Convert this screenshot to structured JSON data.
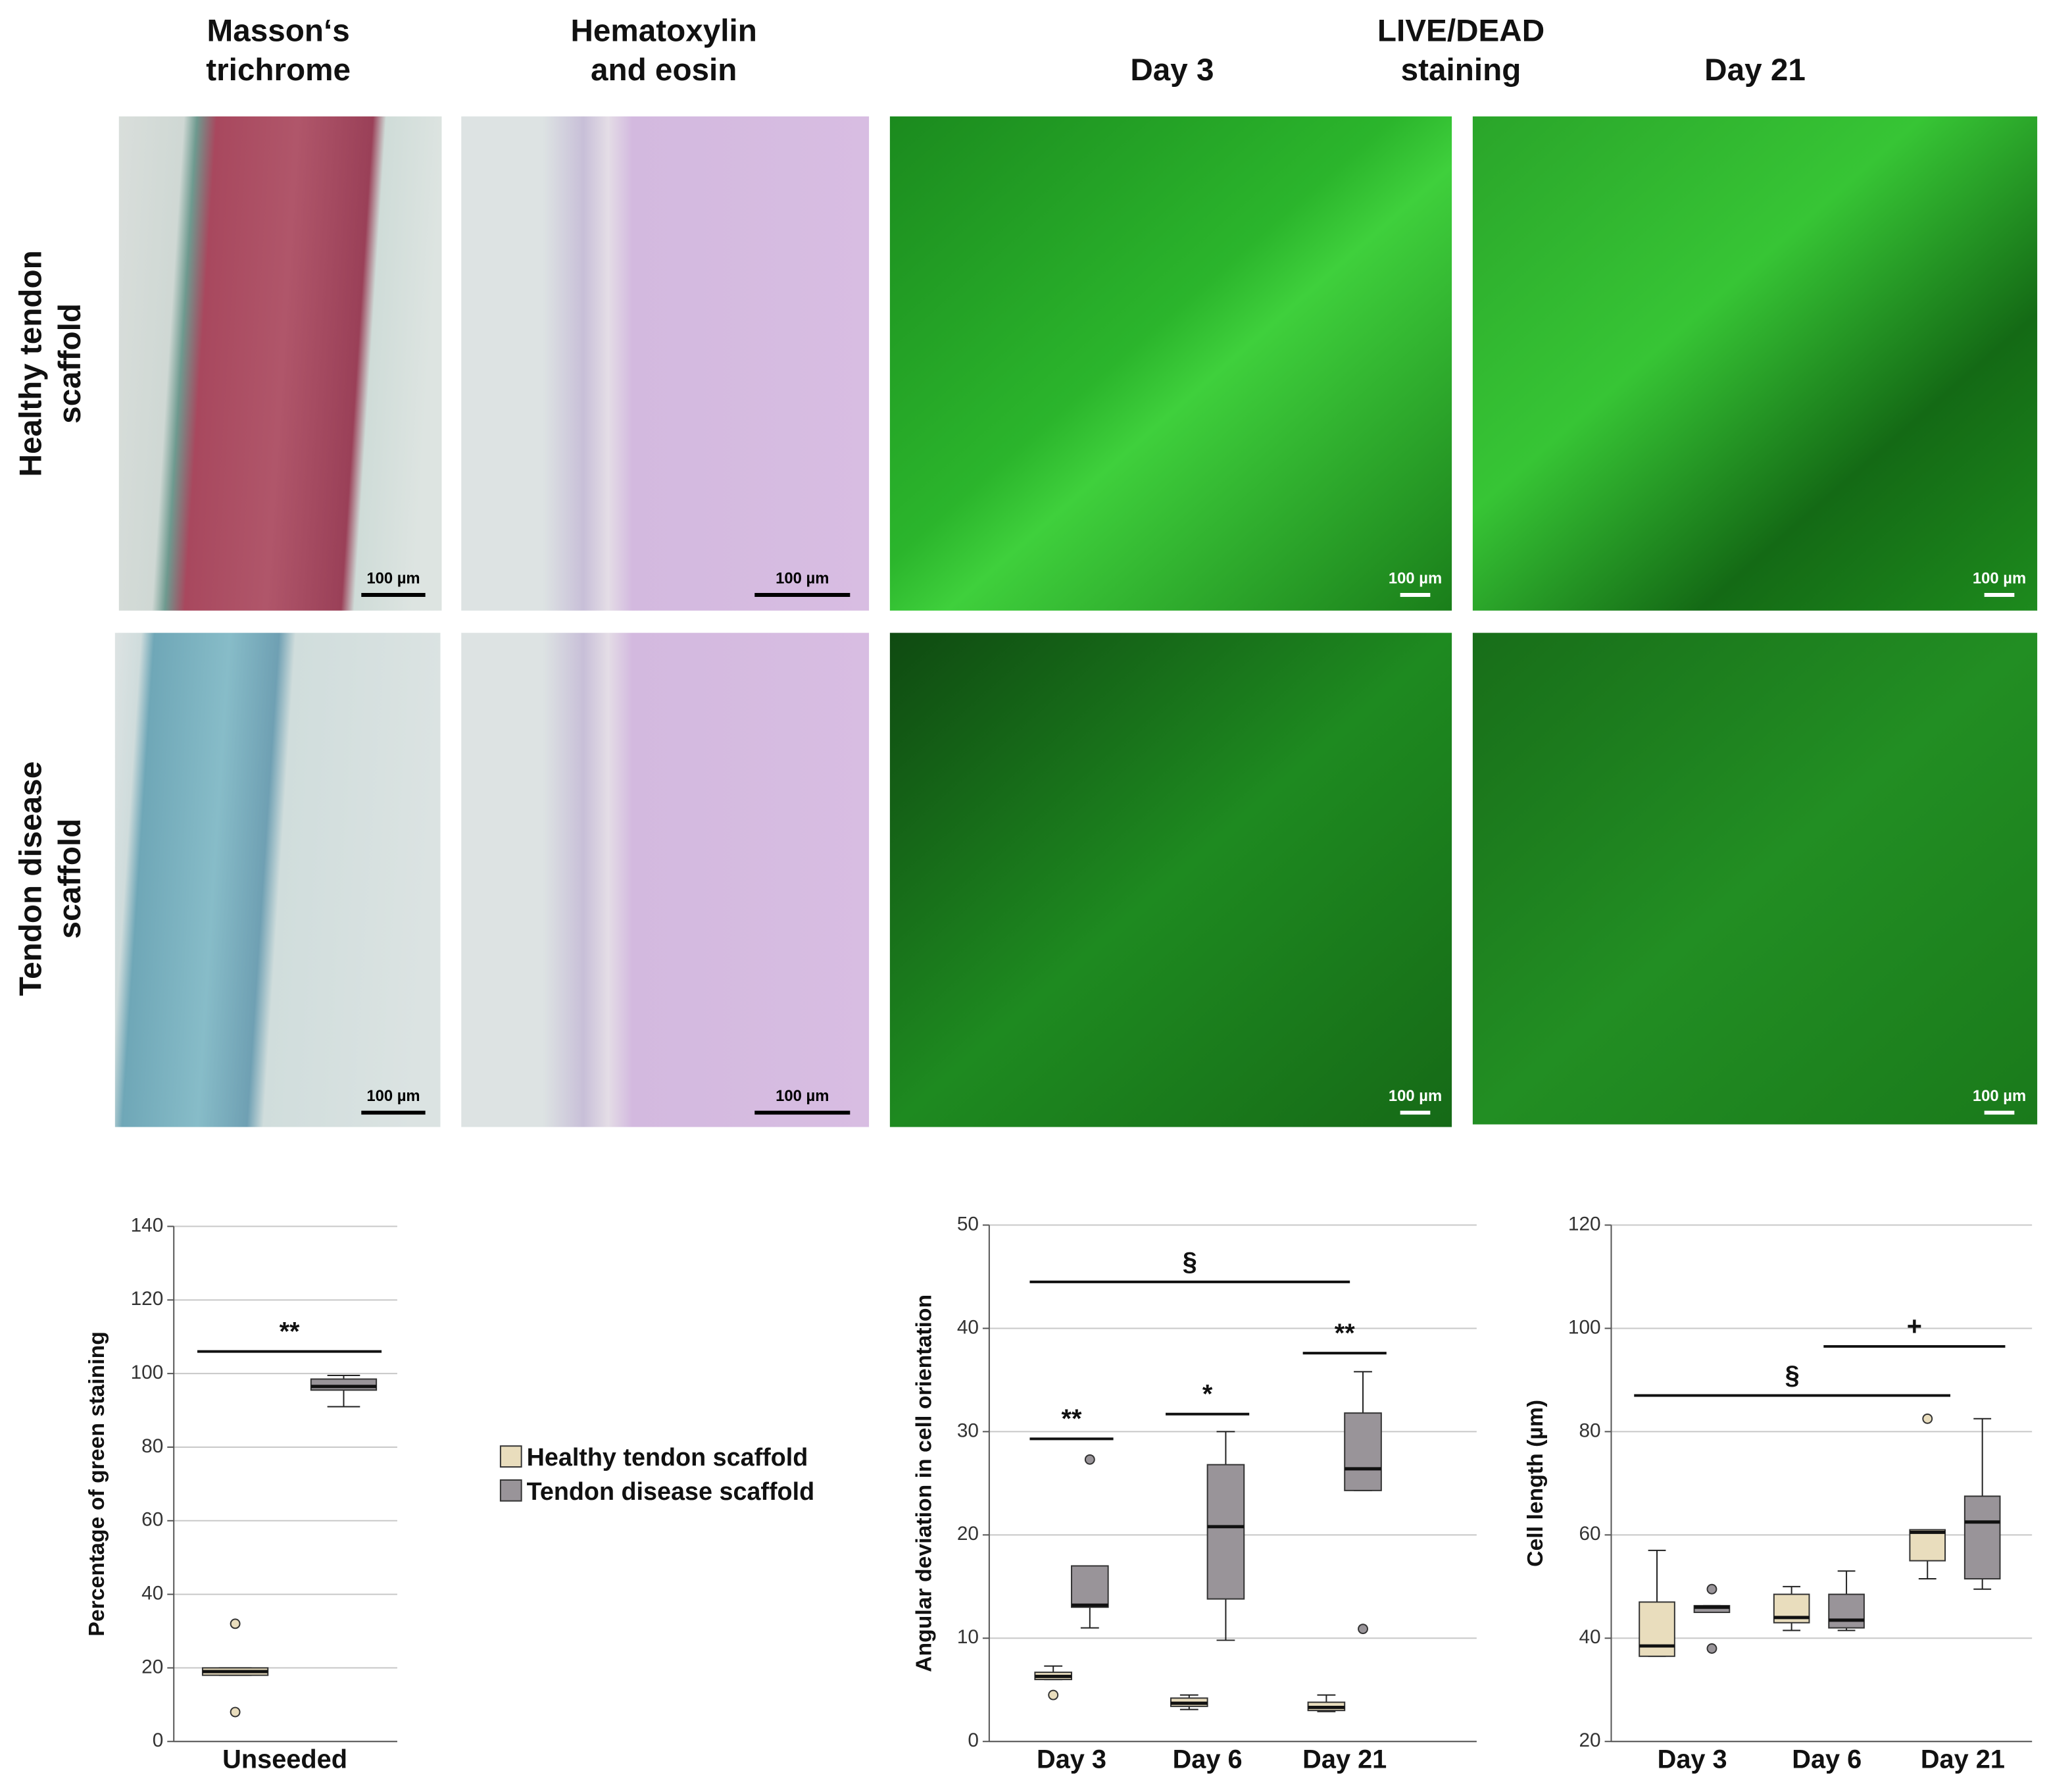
{
  "column_headers": [
    {
      "lines": [
        "Masson‘s",
        "trichrome"
      ]
    },
    {
      "lines": [
        "Hematoxylin",
        "and eosin"
      ]
    },
    {
      "lines": [
        "Day 3"
      ]
    },
    {
      "lines": [
        "LIVE/DEAD",
        "staining"
      ]
    },
    {
      "lines": [
        "Day 21"
      ]
    }
  ],
  "row_labels": [
    {
      "lines": [
        "Healthy tendon",
        "scaffold"
      ]
    },
    {
      "lines": [
        "Tendon disease",
        "scaffold"
      ]
    }
  ],
  "panels": [
    {
      "scale_bar": "100 µm"
    },
    {
      "scale_bar": "100 µm"
    },
    {
      "scale_bar": "100 µm"
    },
    {
      "scale_bar": "100 µm"
    },
    {
      "scale_bar": "100 µm"
    },
    {
      "scale_bar": "100 µm"
    },
    {
      "scale_bar": "100 µm"
    },
    {
      "scale_bar": "100 µm"
    }
  ],
  "legend": [
    {
      "name": "Healthy tendon scaffold",
      "color": "#e9ddbd"
    },
    {
      "name": "Tendon disease scaffold",
      "color": "#999499"
    }
  ],
  "chart_data": [
    {
      "type": "box",
      "y_label": "Percentage of green staining",
      "categories": [
        "Unseeded"
      ],
      "ylim": [
        0,
        140
      ],
      "yticks": [
        0,
        20,
        40,
        60,
        80,
        100,
        120,
        140
      ],
      "grid": true,
      "series": [
        {
          "boxes": [
            {
              "min": 18,
              "q1": 18,
              "median": 19,
              "q3": 20,
              "max": 20,
              "outliers": [
                32,
                8
              ]
            }
          ]
        },
        {
          "boxes": [
            {
              "min": 91,
              "q1": 95.5,
              "median": 96.5,
              "q3": 98.5,
              "max": 99.5,
              "outliers": []
            }
          ]
        }
      ],
      "annotations": [
        {
          "label": "**",
          "y": 106,
          "from": [
            0,
            0
          ],
          "to": [
            0,
            1
          ]
        }
      ]
    },
    {
      "type": "box",
      "y_label": "Angular deviation in cell orientation",
      "categories": [
        "Day 3",
        "Day 6",
        "Day 21"
      ],
      "ylim": [
        0,
        50
      ],
      "yticks": [
        0,
        10,
        20,
        30,
        40,
        50
      ],
      "grid": true,
      "series": [
        {
          "boxes": [
            {
              "min": 6,
              "q1": 6,
              "median": 6.3,
              "q3": 6.7,
              "max": 7.3,
              "outliers": [
                4.5
              ]
            },
            {
              "min": 3.1,
              "q1": 3.4,
              "median": 3.7,
              "q3": 4.2,
              "max": 4.5,
              "outliers": []
            },
            {
              "min": 2.9,
              "q1": 3,
              "median": 3.3,
              "q3": 3.8,
              "max": 4.5,
              "outliers": []
            }
          ]
        },
        {
          "boxes": [
            {
              "min": 11,
              "q1": 13,
              "median": 13.2,
              "q3": 17,
              "max": 17,
              "outliers": [
                27.3
              ]
            },
            {
              "min": 9.8,
              "q1": 13.8,
              "median": 20.8,
              "q3": 26.8,
              "max": 30,
              "outliers": []
            },
            {
              "min": 24.3,
              "q1": 24.3,
              "median": 26.4,
              "q3": 31.8,
              "max": 35.8,
              "outliers": [
                10.9
              ]
            }
          ]
        }
      ],
      "annotations": [
        {
          "label": "**",
          "y": 29.3,
          "from": [
            0,
            0
          ],
          "to": [
            0,
            1
          ]
        },
        {
          "label": "*",
          "y": 31.7,
          "from": [
            1,
            0
          ],
          "to": [
            1,
            1
          ]
        },
        {
          "label": "**",
          "y": 37.6,
          "from": [
            2,
            0
          ],
          "to": [
            2,
            1
          ]
        },
        {
          "label": "§",
          "y": 44.5,
          "from": [
            0,
            0
          ],
          "to": [
            2,
            0
          ]
        }
      ]
    },
    {
      "type": "box",
      "y_label": "Cell length (µm)",
      "categories": [
        "Day 3",
        "Day 6",
        "Day 21"
      ],
      "ylim": [
        20,
        120
      ],
      "yticks": [
        20,
        40,
        60,
        80,
        100,
        120
      ],
      "grid": true,
      "series": [
        {
          "boxes": [
            {
              "min": 36.5,
              "q1": 36.5,
              "median": 38.5,
              "q3": 47,
              "max": 57,
              "outliers": []
            },
            {
              "min": 41.5,
              "q1": 43,
              "median": 44,
              "q3": 48.5,
              "max": 50,
              "outliers": []
            },
            {
              "min": 51.5,
              "q1": 55,
              "median": 60.5,
              "q3": 61,
              "max": 61,
              "outliers": [
                82.5
              ]
            }
          ]
        },
        {
          "boxes": [
            {
              "min": 45,
              "q1": 45,
              "median": 46,
              "q3": 46.3,
              "max": 46.3,
              "outliers": [
                49.5,
                38
              ]
            },
            {
              "min": 41.5,
              "q1": 42,
              "median": 43.5,
              "q3": 48.5,
              "max": 53,
              "outliers": []
            },
            {
              "min": 49.5,
              "q1": 51.5,
              "median": 62.5,
              "q3": 67.5,
              "max": 82.5,
              "outliers": []
            }
          ]
        }
      ],
      "annotations": [
        {
          "label": "§",
          "y": 87,
          "from": [
            0,
            0
          ],
          "to": [
            2,
            0
          ]
        },
        {
          "label": "+",
          "y": 96.5,
          "from": [
            1,
            1
          ],
          "to": [
            2,
            1
          ]
        }
      ]
    }
  ]
}
